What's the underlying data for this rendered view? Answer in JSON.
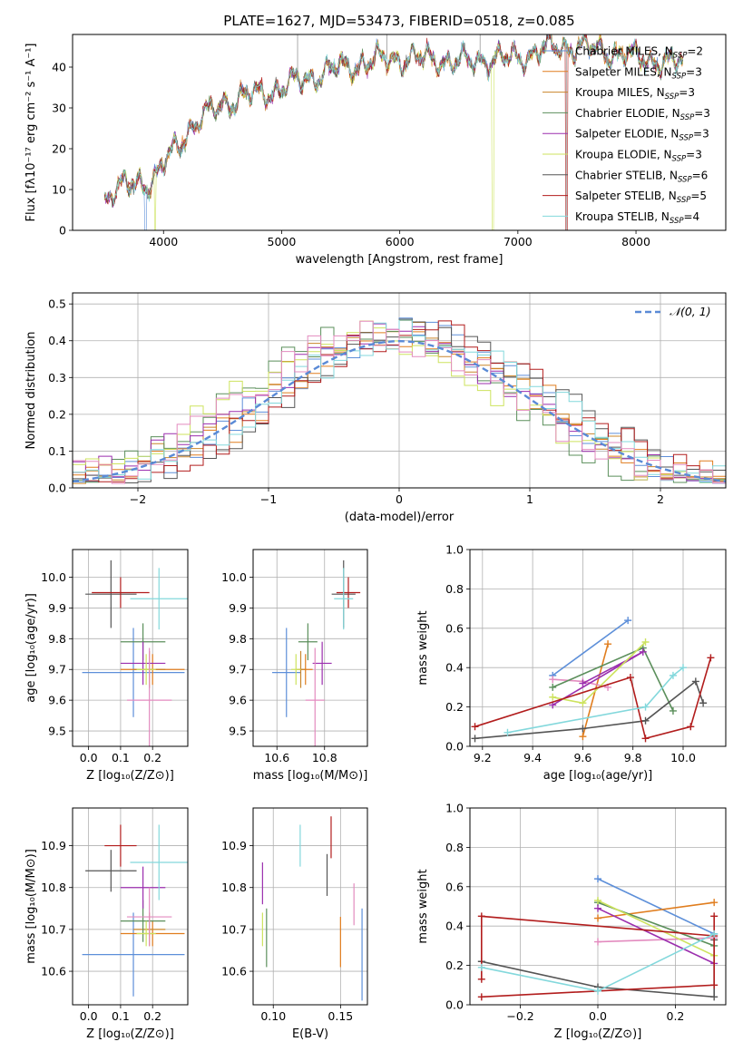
{
  "colors": {
    "chabrier_miles": "#5d8fd9",
    "salpeter_miles": "#e07d1e",
    "kroupa_miles": "#c9852a",
    "chabrier_elodie": "#5b8f5b",
    "salpeter_elodie": "#9b2fae",
    "kroupa_elodie": "#cde35e",
    "chabrier_stelib": "#555555",
    "salpeter_stelib": "#b21d1d",
    "kroupa_stelib": "#83d8dc",
    "pink": "#e38bbf",
    "normal": "#5a8ad6",
    "grid": "#b0b0b0"
  },
  "chart_data": [
    {
      "id": "spectrum",
      "type": "line",
      "title": "PLATE=1627, MJD=53473, FIBERID=0518, z=0.085",
      "xlabel": "wavelength [Angstrom, rest frame]",
      "ylabel": "Flux [fλ10⁻¹⁷ erg cm⁻² s⁻¹ A⁻¹]",
      "xlim": [
        3230,
        8760
      ],
      "ylim": [
        0,
        48
      ],
      "xticks": [
        "4000",
        "5000",
        "6000",
        "7000",
        "8000"
      ],
      "yticks": [
        "0",
        "10",
        "20",
        "30",
        "40"
      ],
      "grid": false,
      "legend_position": "top-right",
      "legend": [
        {
          "text": "Chabrier MILES, N",
          "sub": "SSP",
          "suffix": "=2"
        },
        {
          "text": "Salpeter MILES, N",
          "sub": "SSP",
          "suffix": "=3"
        },
        {
          "text": "Kroupa MILES, N",
          "sub": "SSP",
          "suffix": "=3"
        },
        {
          "text": "Chabrier ELODIE, N",
          "sub": "SSP",
          "suffix": "=3"
        },
        {
          "text": "Salpeter ELODIE, N",
          "sub": "SSP",
          "suffix": "=3"
        },
        {
          "text": "Kroupa ELODIE, N",
          "sub": "SSP",
          "suffix": "=3"
        },
        {
          "text": "Chabrier STELIB, N",
          "sub": "SSP",
          "suffix": "=6"
        },
        {
          "text": "Salpeter STELIB, N",
          "sub": "SSP",
          "suffix": "=5"
        },
        {
          "text": "Kroupa STELIB, N",
          "sub": "SSP",
          "suffix": "=4"
        }
      ],
      "continuum": [
        [
          3500,
          8
        ],
        [
          3600,
          10
        ],
        [
          3700,
          11
        ],
        [
          3800,
          12
        ],
        [
          3900,
          12
        ],
        [
          4000,
          16
        ],
        [
          4100,
          20
        ],
        [
          4200,
          24
        ],
        [
          4300,
          27
        ],
        [
          4400,
          29
        ],
        [
          4500,
          31
        ],
        [
          4700,
          33
        ],
        [
          4900,
          34
        ],
        [
          5100,
          36
        ],
        [
          5300,
          38
        ],
        [
          5500,
          40
        ],
        [
          5700,
          41
        ],
        [
          5900,
          42
        ],
        [
          6100,
          42
        ],
        [
          6300,
          42
        ],
        [
          6500,
          41
        ],
        [
          6700,
          42
        ],
        [
          6900,
          42
        ],
        [
          7100,
          43
        ],
        [
          7300,
          45
        ],
        [
          7500,
          45
        ],
        [
          7700,
          44
        ],
        [
          7900,
          43
        ],
        [
          8100,
          42
        ],
        [
          8300,
          41
        ],
        [
          8400,
          41
        ]
      ]
    },
    {
      "id": "residuals",
      "type": "histogram",
      "xlabel": "(data-model)/error",
      "ylabel": "Normed distribution",
      "xlim": [
        -2.5,
        2.5
      ],
      "ylim": [
        0,
        0.53
      ],
      "xticks": [
        "−2",
        "−1",
        "0",
        "1",
        "2"
      ],
      "yticks": [
        "0.0",
        "0.1",
        "0.2",
        "0.3",
        "0.4",
        "0.5"
      ],
      "grid": true,
      "legend_position": "top-right",
      "legend": "𝒩(0, 1)",
      "bin_width": 0.1
    },
    {
      "id": "age_vs_Z",
      "type": "scatter",
      "xlabel": "Z [log₁₀(Z/Z⊙)]",
      "ylabel": "age  [log₁₀(age/yr)]",
      "xlim": [
        -0.05,
        0.31
      ],
      "ylim": [
        9.45,
        10.09
      ],
      "xticks": [
        "0.0",
        "0.1",
        "0.2"
      ],
      "yticks": [
        "9.5",
        "9.6",
        "9.7",
        "9.8",
        "9.9",
        "10.0"
      ],
      "grid": true
    },
    {
      "id": "age_vs_mass",
      "type": "scatter",
      "xlabel": "mass [log₁₀(M/M⊙)]",
      "ylabel": "",
      "xlim": [
        10.5,
        10.98
      ],
      "ylim": [
        9.45,
        10.09
      ],
      "xticks": [
        "10.6",
        "10.8"
      ],
      "yticks": [
        "9.5",
        "9.6",
        "9.7",
        "9.8",
        "9.9",
        "10.0"
      ],
      "grid": true
    },
    {
      "id": "weight_vs_age",
      "type": "line",
      "xlabel": "age  [log₁₀(age/yr)]",
      "ylabel": "mass weight",
      "xlim": [
        9.15,
        10.17
      ],
      "ylim": [
        0,
        1
      ],
      "xticks": [
        "9.2",
        "9.4",
        "9.6",
        "9.8",
        "10.0"
      ],
      "yticks": [
        "0.0",
        "0.2",
        "0.4",
        "0.6",
        "0.8",
        "1.0"
      ],
      "grid": true,
      "series": [
        {
          "color": "chabrier_miles",
          "points": [
            [
              9.48,
              0.36
            ],
            [
              9.78,
              0.64
            ]
          ]
        },
        {
          "color": "salpeter_miles",
          "points": [
            [
              9.6,
              0.05
            ],
            [
              9.7,
              0.52
            ]
          ]
        },
        {
          "color": "pink",
          "points": [
            [
              9.48,
              0.34
            ],
            [
              9.6,
              0.33
            ],
            [
              9.7,
              0.3
            ]
          ]
        },
        {
          "color": "chabrier_elodie",
          "points": [
            [
              9.48,
              0.3
            ],
            [
              9.84,
              0.5
            ],
            [
              9.96,
              0.18
            ]
          ]
        },
        {
          "color": "salpeter_elodie",
          "points": [
            [
              9.48,
              0.21
            ],
            [
              9.84,
              0.48
            ],
            [
              9.6,
              0.32
            ]
          ]
        },
        {
          "color": "kroupa_elodie",
          "points": [
            [
              9.48,
              0.25
            ],
            [
              9.6,
              0.22
            ],
            [
              9.85,
              0.53
            ]
          ]
        },
        {
          "color": "chabrier_stelib",
          "points": [
            [
              9.17,
              0.04
            ],
            [
              9.6,
              0.09
            ],
            [
              9.85,
              0.13
            ],
            [
              10.05,
              0.33
            ],
            [
              10.08,
              0.22
            ]
          ]
        },
        {
          "color": "salpeter_stelib",
          "points": [
            [
              9.17,
              0.1
            ],
            [
              9.79,
              0.35
            ],
            [
              9.85,
              0.04
            ],
            [
              10.03,
              0.1
            ],
            [
              10.11,
              0.45
            ]
          ]
        },
        {
          "color": "kroupa_stelib",
          "points": [
            [
              9.3,
              0.07
            ],
            [
              9.85,
              0.2
            ],
            [
              9.96,
              0.36
            ],
            [
              10.0,
              0.4
            ]
          ]
        }
      ]
    },
    {
      "id": "mass_vs_Z",
      "type": "scatter",
      "xlabel": "Z [log₁₀(Z/Z⊙)]",
      "ylabel": "mass [log₁₀(M/M⊙)]",
      "xlim": [
        -0.05,
        0.31
      ],
      "ylim": [
        10.52,
        10.99
      ],
      "xticks": [
        "0.0",
        "0.1",
        "0.2"
      ],
      "yticks": [
        "10.6",
        "10.7",
        "10.8",
        "10.9"
      ],
      "grid": true
    },
    {
      "id": "mass_vs_ebv",
      "type": "scatter",
      "xlabel": "E(B-V)",
      "ylabel": "",
      "xlim": [
        0.085,
        0.17
      ],
      "ylim": [
        10.52,
        10.99
      ],
      "xticks": [
        "0.10",
        "0.15"
      ],
      "yticks": [
        "10.6",
        "10.7",
        "10.8",
        "10.9"
      ],
      "grid": true
    },
    {
      "id": "weight_vs_Z",
      "type": "line",
      "xlabel": "Z [log₁₀(Z/Z⊙)]",
      "ylabel": "mass weight",
      "xlim": [
        -0.33,
        0.33
      ],
      "ylim": [
        0,
        1
      ],
      "xticks": [
        "−0.2",
        "0.0",
        "0.2"
      ],
      "yticks": [
        "0.0",
        "0.2",
        "0.4",
        "0.6",
        "0.8",
        "1.0"
      ],
      "grid": true,
      "series": [
        {
          "color": "chabrier_miles",
          "points": [
            [
              0.0,
              0.64
            ],
            [
              0.3,
              0.36
            ]
          ]
        },
        {
          "color": "salpeter_miles",
          "points": [
            [
              0.0,
              0.44
            ],
            [
              0.3,
              0.52
            ]
          ]
        },
        {
          "color": "pink",
          "points": [
            [
              0.0,
              0.32
            ],
            [
              0.3,
              0.34
            ]
          ]
        },
        {
          "color": "chabrier_elodie",
          "points": [
            [
              0.0,
              0.52
            ],
            [
              0.3,
              0.3
            ]
          ]
        },
        {
          "color": "salpeter_elodie",
          "points": [
            [
              0.0,
              0.49
            ],
            [
              0.3,
              0.21
            ]
          ]
        },
        {
          "color": "kroupa_elodie",
          "points": [
            [
              0.0,
              0.53
            ],
            [
              0.3,
              0.25
            ]
          ]
        },
        {
          "color": "chabrier_stelib",
          "points": [
            [
              -0.3,
              0.22
            ],
            [
              0.0,
              0.09
            ],
            [
              0.3,
              0.04
            ],
            [
              0.3,
              0.33
            ]
          ]
        },
        {
          "color": "salpeter_stelib",
          "points": [
            [
              -0.3,
              0.04
            ],
            [
              0.3,
              0.1
            ],
            [
              0.3,
              0.45
            ],
            [
              0.3,
              0.35
            ],
            [
              -0.3,
              0.45
            ],
            [
              -0.3,
              0.13
            ]
          ]
        },
        {
          "color": "kroupa_stelib",
          "points": [
            [
              -0.3,
              0.19
            ],
            [
              0.0,
              0.07
            ],
            [
              0.3,
              0.36
            ]
          ]
        }
      ]
    }
  ]
}
